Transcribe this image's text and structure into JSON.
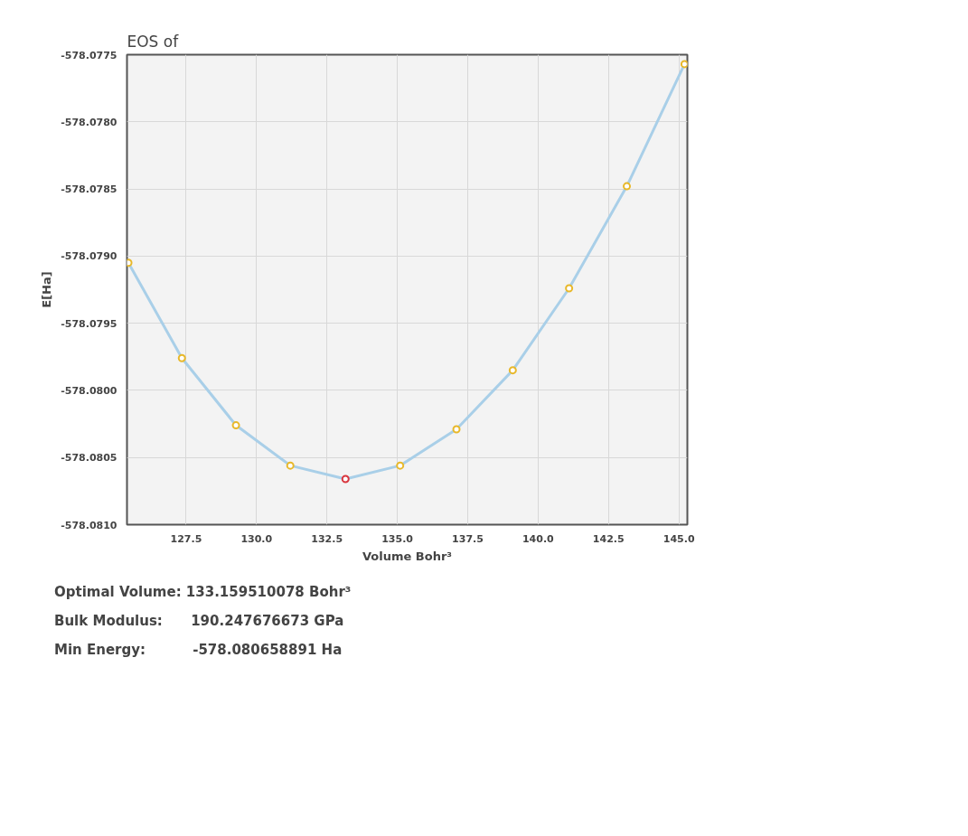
{
  "chart_data": {
    "type": "scatter",
    "title": "EOS of",
    "xlabel": "Volume Bohr³",
    "ylabel": "E[Ha]",
    "xlim": [
      125.4,
      145.3
    ],
    "ylim": [
      -578.081,
      -578.0775
    ],
    "xticks": [
      {
        "value": 127.5,
        "label": "127.5"
      },
      {
        "value": 130,
        "label": "130.0"
      },
      {
        "value": 132.5,
        "label": "132.5"
      },
      {
        "value": 135,
        "label": "135.0"
      },
      {
        "value": 137.5,
        "label": "137.5"
      },
      {
        "value": 140,
        "label": "140.0"
      },
      {
        "value": 142.5,
        "label": "142.5"
      },
      {
        "value": 145,
        "label": "145.0"
      }
    ],
    "yticks": [
      {
        "value": -578.0775,
        "label": "-578.0775"
      },
      {
        "value": -578.078,
        "label": "-578.0780"
      },
      {
        "value": -578.0785,
        "label": "-578.0785"
      },
      {
        "value": -578.079,
        "label": "-578.0790"
      },
      {
        "value": -578.0795,
        "label": "-578.0795"
      },
      {
        "value": -578.08,
        "label": "-578.0800"
      },
      {
        "value": -578.0805,
        "label": "-578.0805"
      },
      {
        "value": -578.081,
        "label": "-578.0810"
      }
    ],
    "grid": true,
    "series": [
      {
        "type": "line",
        "color": "#a9cfe8",
        "marker": "none",
        "x": [
          125.45,
          127.35,
          129.27,
          131.2,
          133.16,
          135.1,
          137.1,
          139.1,
          141.1,
          143.15,
          145.2
        ],
        "values": [
          -578.07905,
          -578.07976,
          -578.08026,
          -578.08056,
          -578.08066,
          -578.08056,
          -578.08029,
          -578.07985,
          -578.07924,
          -578.07848,
          -578.07757
        ]
      },
      {
        "color": "#e8b82a",
        "marker": "circle",
        "x": [
          125.45,
          127.35,
          129.27,
          131.2,
          135.1,
          137.1,
          139.1,
          141.1,
          143.15,
          145.2
        ],
        "values": [
          -578.07905,
          -578.07976,
          -578.08026,
          -578.08056,
          -578.08056,
          -578.08029,
          -578.07985,
          -578.07924,
          -578.07848,
          -578.07757
        ]
      },
      {
        "color": "#d9363e",
        "marker": "circle",
        "x": [
          133.16
        ],
        "values": [
          -578.08066
        ]
      }
    ],
    "annotations": [
      "Optimal Volume: 133.159510078 Bohr³",
      "Bulk Modulus:      190.247676673 GPa",
      "Min Energy:          -578.080658891 Ha"
    ]
  }
}
